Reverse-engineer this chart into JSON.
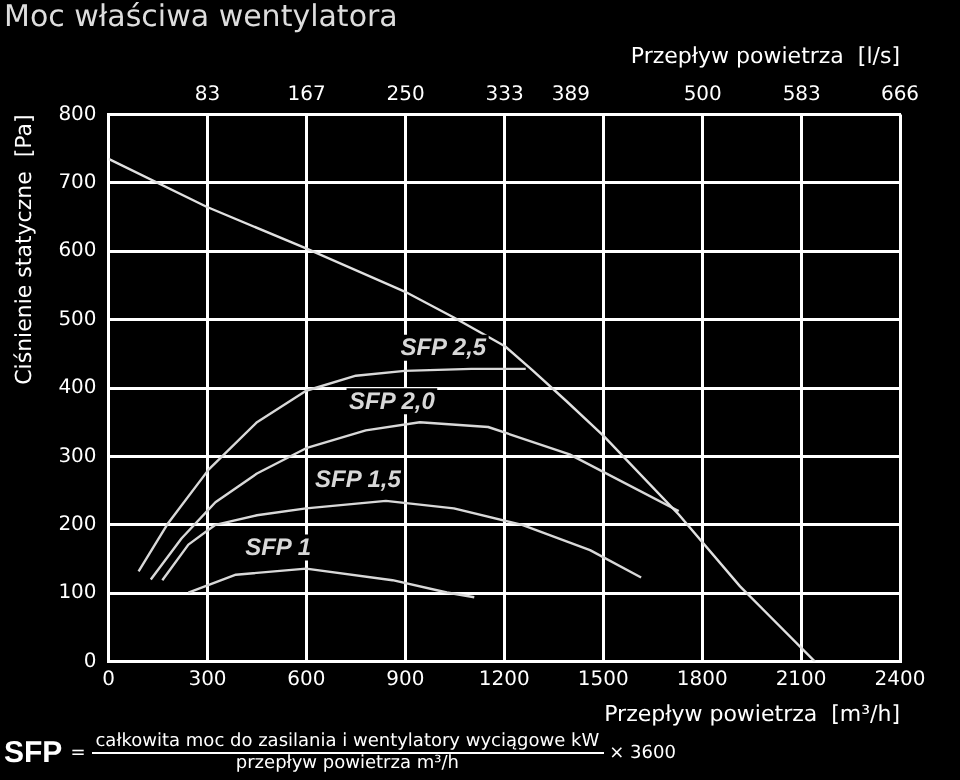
{
  "chart_data": {
    "type": "line",
    "title": "Moc właściwa wentylatora",
    "xlabel": "Przepływ powietrza  [m³/h]",
    "x2label": "Przepływ powietrza  [l/s]",
    "ylabel": "Ciśnienie statyczne  [Pa]",
    "xlim": [
      0,
      2400
    ],
    "xticks": [
      0,
      300,
      600,
      900,
      1200,
      1500,
      1800,
      2100,
      2400
    ],
    "x2lim": [
      0,
      666
    ],
    "x2ticks": [
      {
        "value": 83.3,
        "label": "83"
      },
      {
        "value": 166.7,
        "label": "167"
      },
      {
        "value": 250,
        "label": "250"
      },
      {
        "value": 333.3,
        "label": "333"
      },
      389,
      {
        "value": 500,
        "label": "500"
      },
      {
        "value": 583.3,
        "label": "583"
      },
      666
    ],
    "ylim": [
      0,
      800
    ],
    "yticks": [
      0,
      100,
      200,
      300,
      400,
      500,
      600,
      700,
      800
    ],
    "grid": true,
    "marker": "none",
    "line_style": "solid",
    "series": [
      {
        "color": "#e0e0e0",
        "x": [
          0,
          297,
          599,
          898,
          1047,
          1202,
          1285,
          1388,
          1501,
          1729,
          1915,
          2142
        ],
        "values": [
          735,
          665,
          604,
          541,
          503,
          461,
          426,
          381,
          330,
          215,
          110,
          0
        ]
      },
      {
        "name": "SFP 2,5",
        "color": "#d8d8d8",
        "x": [
          91,
          180,
          304,
          450,
          599,
          750,
          898,
          1100,
          1265
        ],
        "values": [
          132,
          202,
          281,
          350,
          396,
          418,
          425,
          428,
          428
        ]
      },
      {
        "name": "SFP 2,0",
        "color": "#d8d8d8",
        "x": [
          128,
          221,
          324,
          450,
          599,
          780,
          944,
          1151,
          1398,
          1729
        ],
        "values": [
          120,
          180,
          233,
          275,
          312,
          338,
          350,
          343,
          303,
          220
        ]
      },
      {
        "name": "SFP 1,5",
        "color": "#d8d8d8",
        "x": [
          163,
          242,
          324,
          450,
          599,
          841,
          1047,
          1254,
          1460,
          1615
        ],
        "values": [
          119,
          171,
          200,
          214,
          224,
          235,
          224,
          200,
          163,
          123
        ]
      },
      {
        "name": "SFP 1",
        "color": "#d8d8d8",
        "x": [
          242,
          386,
          599,
          861,
          1026,
          1109
        ],
        "values": [
          101,
          127,
          136,
          119,
          101,
          94
        ]
      }
    ],
    "annotations": [
      "SFP",
      "=",
      "całkowita moc do zasilania i wentylatory wyciągowe kW",
      "przepływ powietrza m³/h",
      "× 3600"
    ]
  }
}
